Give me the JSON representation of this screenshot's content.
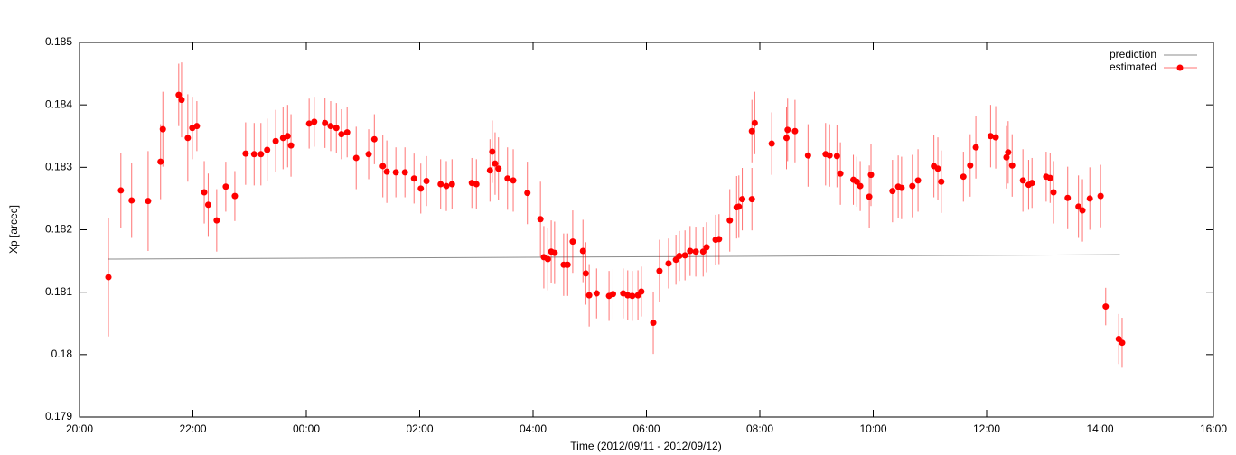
{
  "chart_data": {
    "type": "scatter",
    "xlabel": "Time (2012/09/11 - 2012/09/12)",
    "ylabel": "Xp [arcec]",
    "xlim": [
      20,
      40
    ],
    "xticks": [
      {
        "value": 20,
        "label": "20:00"
      },
      {
        "value": 22,
        "label": "22:00"
      },
      {
        "value": 24,
        "label": "00:00"
      },
      {
        "value": 26,
        "label": "02:00"
      },
      {
        "value": 28,
        "label": "04:00"
      },
      {
        "value": 30,
        "label": "06:00"
      },
      {
        "value": 32,
        "label": "08:00"
      },
      {
        "value": 34,
        "label": "10:00"
      },
      {
        "value": 36,
        "label": "12:00"
      },
      {
        "value": 38,
        "label": "14:00"
      },
      {
        "value": 40,
        "label": "16:00"
      }
    ],
    "ylim": [
      0.179,
      0.185
    ],
    "yticks": [
      0.179,
      0.18,
      0.181,
      0.182,
      0.183,
      0.184,
      0.185
    ],
    "grid": false,
    "legend": "top-right",
    "series": [
      {
        "name": "prediction",
        "color": "#8c8c8c",
        "x": [
          20.5,
          38.35
        ],
        "values": [
          0.18153,
          0.1816
        ]
      },
      {
        "name": "estimated",
        "color": "#ff0000",
        "x": [
          20.51,
          20.73,
          20.92,
          21.21,
          21.43,
          21.47,
          21.75,
          21.8,
          21.91,
          21.99,
          22.07,
          22.2,
          22.27,
          22.42,
          22.58,
          22.74,
          22.93,
          23.08,
          23.2,
          23.31,
          23.46,
          23.59,
          23.67,
          23.73,
          24.05,
          24.14,
          24.33,
          24.43,
          24.53,
          24.62,
          24.72,
          24.88,
          25.1,
          25.2,
          25.35,
          25.42,
          25.58,
          25.74,
          25.9,
          26.02,
          26.12,
          26.37,
          26.47,
          26.57,
          26.92,
          27.0,
          27.24,
          27.28,
          27.33,
          27.39,
          27.55,
          27.65,
          27.9,
          28.13,
          28.19,
          28.26,
          28.32,
          28.38,
          28.54,
          28.61,
          28.7,
          28.88,
          28.93,
          28.99,
          29.12,
          29.34,
          29.41,
          29.59,
          29.67,
          29.75,
          29.85,
          29.91,
          30.12,
          30.23,
          30.39,
          30.52,
          30.58,
          30.68,
          30.77,
          30.87,
          31.0,
          31.06,
          31.22,
          31.28,
          31.47,
          31.59,
          31.63,
          31.69,
          31.86,
          31.86,
          31.91,
          32.21,
          32.47,
          32.49,
          32.62,
          32.85,
          33.16,
          33.23,
          33.36,
          33.42,
          33.65,
          33.71,
          33.77,
          33.93,
          33.96,
          34.34,
          34.44,
          34.5,
          34.69,
          34.79,
          35.07,
          35.14,
          35.2,
          35.59,
          35.71,
          35.81,
          36.07,
          36.16,
          36.35,
          36.38,
          36.45,
          36.64,
          36.74,
          36.8,
          37.05,
          37.12,
          37.18,
          37.43,
          37.62,
          37.69,
          37.82,
          38.01,
          38.1,
          38.33,
          38.39
        ],
        "values": [
          0.18124,
          0.18263,
          0.18247,
          0.18246,
          0.18309,
          0.18361,
          0.18416,
          0.18408,
          0.18347,
          0.18363,
          0.18366,
          0.1826,
          0.1824,
          0.18215,
          0.18269,
          0.18254,
          0.18322,
          0.18321,
          0.18321,
          0.18328,
          0.18342,
          0.18347,
          0.1835,
          0.18335,
          0.1837,
          0.18373,
          0.18371,
          0.18366,
          0.18363,
          0.18353,
          0.18356,
          0.18315,
          0.18321,
          0.18345,
          0.18302,
          0.18293,
          0.18292,
          0.18292,
          0.18282,
          0.18266,
          0.18278,
          0.18273,
          0.1827,
          0.18273,
          0.18275,
          0.18273,
          0.18295,
          0.18325,
          0.18306,
          0.18298,
          0.18282,
          0.18279,
          0.18259,
          0.18217,
          0.18156,
          0.18153,
          0.18165,
          0.18163,
          0.18144,
          0.18144,
          0.18181,
          0.18166,
          0.1813,
          0.18095,
          0.18098,
          0.18094,
          0.18097,
          0.18098,
          0.18095,
          0.18094,
          0.18095,
          0.18101,
          0.18051,
          0.18134,
          0.18146,
          0.18152,
          0.18158,
          0.18159,
          0.18166,
          0.18165,
          0.18165,
          0.18172,
          0.18184,
          0.18185,
          0.18215,
          0.18236,
          0.18237,
          0.18249,
          0.18249,
          0.18358,
          0.18371,
          0.18338,
          0.18347,
          0.1836,
          0.18358,
          0.18319,
          0.18321,
          0.18319,
          0.18318,
          0.1829,
          0.1828,
          0.18277,
          0.1827,
          0.18253,
          0.18288,
          0.18262,
          0.18269,
          0.18267,
          0.1827,
          0.18279,
          0.18302,
          0.18298,
          0.18277,
          0.18285,
          0.18303,
          0.18332,
          0.1835,
          0.18348,
          0.18316,
          0.18324,
          0.18303,
          0.18279,
          0.18272,
          0.18275,
          0.18285,
          0.18283,
          0.1826,
          0.18251,
          0.18237,
          0.18231,
          0.1825,
          0.18254,
          0.18077,
          0.18025,
          0.18019
        ],
        "errors": [
          0.00095,
          0.0006,
          0.0006,
          0.0008,
          0.0006,
          0.0006,
          0.0005,
          0.0006,
          0.0007,
          0.0005,
          0.0004,
          0.0005,
          0.0005,
          0.0005,
          0.0004,
          0.0004,
          0.0005,
          0.0005,
          0.0005,
          0.0005,
          0.0005,
          0.0005,
          0.0005,
          0.0005,
          0.0004,
          0.0004,
          0.0004,
          0.0004,
          0.0004,
          0.0004,
          0.0004,
          0.0005,
          0.0004,
          0.0004,
          0.0005,
          0.0005,
          0.0004,
          0.0004,
          0.0004,
          0.0004,
          0.0004,
          0.0004,
          0.0004,
          0.0004,
          0.0004,
          0.0004,
          0.0005,
          0.0005,
          0.0005,
          0.0005,
          0.0005,
          0.0005,
          0.0005,
          0.0006,
          0.0005,
          0.0005,
          0.0005,
          0.0005,
          0.0005,
          0.0005,
          0.0005,
          0.0005,
          0.0005,
          0.0005,
          0.0004,
          0.0004,
          0.0004,
          0.0004,
          0.0004,
          0.0004,
          0.0004,
          0.0004,
          0.0005,
          0.0005,
          0.0004,
          0.0004,
          0.0004,
          0.0004,
          0.0004,
          0.0004,
          0.0004,
          0.0004,
          0.0004,
          0.0004,
          0.0005,
          0.0005,
          0.0005,
          0.0005,
          0.0005,
          0.0005,
          0.0005,
          0.0005,
          0.0005,
          0.0005,
          0.0005,
          0.0005,
          0.0005,
          0.0005,
          0.0005,
          0.0005,
          0.0004,
          0.0004,
          0.0004,
          0.0005,
          0.0005,
          0.0005,
          0.0005,
          0.0005,
          0.0005,
          0.0005,
          0.0005,
          0.0005,
          0.0005,
          0.0004,
          0.0005,
          0.0005,
          0.0005,
          0.0005,
          0.0005,
          0.0005,
          0.0005,
          0.0005,
          0.0004,
          0.0004,
          0.0004,
          0.0004,
          0.0005,
          0.0005,
          0.0005,
          0.0005,
          0.0005,
          0.0005,
          0.0003,
          0.0004,
          0.0004
        ]
      }
    ]
  }
}
